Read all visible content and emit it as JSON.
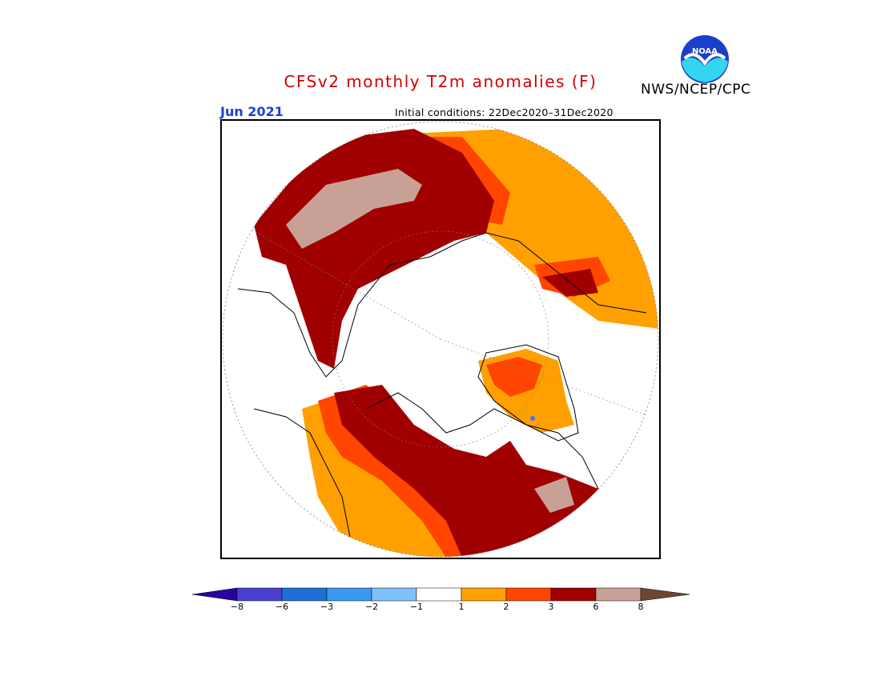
{
  "header": {
    "title": "CFSv2 monthly T2m anomalies (F)",
    "org": "NWS/NCEP/CPC",
    "logo_text": "NOAA"
  },
  "map": {
    "valid_month": "Jun 2021",
    "initial_conditions": "Initial conditions: 22Dec2020–31Dec2020",
    "projection": "north-polar-stereographic",
    "palette": {
      "land_outline": "#000000",
      "graticule": "#808080",
      "anom_1_2": "#ffa000",
      "anom_2_3": "#ff4500",
      "anom_3_6": "#a00000",
      "anom_6_8": "#c8a096",
      "neutral": "#ffffff",
      "cold_marker": "#3c78ff"
    }
  },
  "legend": {
    "ticks": [
      "−8",
      "−6",
      "−3",
      "−2",
      "−1",
      "1",
      "2",
      "3",
      "6",
      "8"
    ],
    "colors": [
      "#2b00a0",
      "#4b3fd0",
      "#1f6fd6",
      "#3c98f0",
      "#80c0f8",
      "#ffffff",
      "#ffa000",
      "#ff4500",
      "#a00000",
      "#c8a096",
      "#6e4632"
    ]
  }
}
